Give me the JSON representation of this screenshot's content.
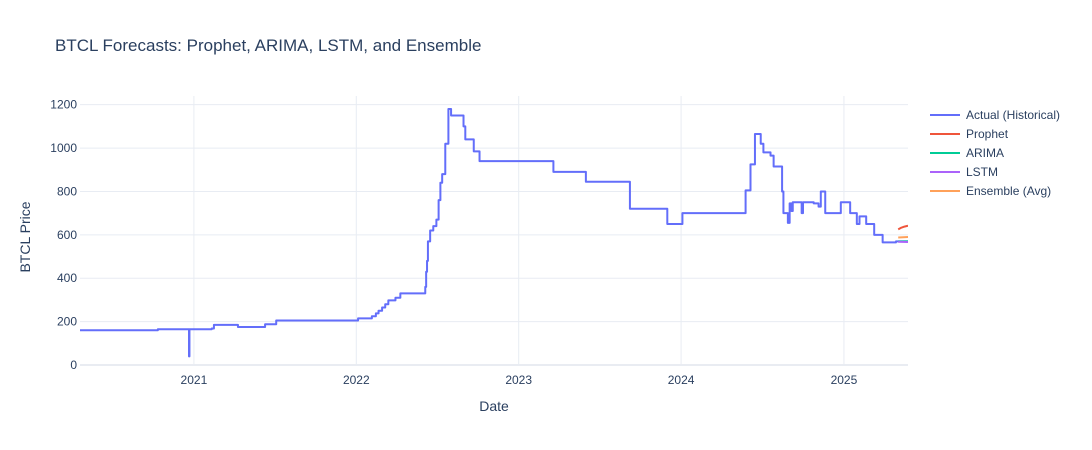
{
  "chart_data": {
    "type": "line",
    "title": "BTCL Forecasts: Prophet, ARIMA, LSTM, and Ensemble",
    "xlabel": "Date",
    "ylabel": "BTCL Price",
    "xlim": [
      "2020-04-20",
      "2025-05-25"
    ],
    "ylim": [
      0,
      1240
    ],
    "x_ticks": [
      "2021",
      "2022",
      "2023",
      "2024",
      "2025"
    ],
    "y_ticks": [
      0,
      200,
      400,
      600,
      800,
      1000,
      1200
    ],
    "grid": true,
    "legend_position": "top-right",
    "series": [
      {
        "name": "Actual (Historical)",
        "color": "#636efa",
        "line_shape": "hv",
        "points": [
          [
            "2020-04-20",
            160
          ],
          [
            "2020-10-12",
            165
          ],
          [
            "2020-12-20",
            165
          ],
          [
            "2020-12-21",
            40
          ],
          [
            "2020-12-22",
            165
          ],
          [
            "2021-02-10",
            168
          ],
          [
            "2021-02-15",
            185
          ],
          [
            "2021-04-10",
            175
          ],
          [
            "2021-06-10",
            188
          ],
          [
            "2021-07-05",
            205
          ],
          [
            "2022-01-05",
            215
          ],
          [
            "2022-02-05",
            225
          ],
          [
            "2022-02-14",
            238
          ],
          [
            "2022-02-20",
            250
          ],
          [
            "2022-02-28",
            265
          ],
          [
            "2022-03-07",
            280
          ],
          [
            "2022-03-14",
            298
          ],
          [
            "2022-03-30",
            310
          ],
          [
            "2022-04-10",
            330
          ],
          [
            "2022-06-05",
            360
          ],
          [
            "2022-06-07",
            430
          ],
          [
            "2022-06-09",
            480
          ],
          [
            "2022-06-11",
            570
          ],
          [
            "2022-06-16",
            620
          ],
          [
            "2022-06-23",
            640
          ],
          [
            "2022-06-30",
            670
          ],
          [
            "2022-07-05",
            760
          ],
          [
            "2022-07-09",
            840
          ],
          [
            "2022-07-13",
            880
          ],
          [
            "2022-07-20",
            1020
          ],
          [
            "2022-07-27",
            1180
          ],
          [
            "2022-08-02",
            1150
          ],
          [
            "2022-08-30",
            1100
          ],
          [
            "2022-09-03",
            1040
          ],
          [
            "2022-09-22",
            985
          ],
          [
            "2022-10-05",
            940
          ],
          [
            "2023-03-20",
            890
          ],
          [
            "2023-06-01",
            845
          ],
          [
            "2023-09-08",
            720
          ],
          [
            "2023-12-01",
            650
          ],
          [
            "2024-01-04",
            700
          ],
          [
            "2024-05-25",
            805
          ],
          [
            "2024-06-05",
            925
          ],
          [
            "2024-06-15",
            1065
          ],
          [
            "2024-06-28",
            1020
          ],
          [
            "2024-07-04",
            980
          ],
          [
            "2024-07-20",
            965
          ],
          [
            "2024-07-27",
            915
          ],
          [
            "2024-08-15",
            800
          ],
          [
            "2024-08-18",
            700
          ],
          [
            "2024-08-28",
            655
          ],
          [
            "2024-09-01",
            745
          ],
          [
            "2024-09-05",
            710
          ],
          [
            "2024-09-08",
            750
          ],
          [
            "2024-09-28",
            700
          ],
          [
            "2024-10-01",
            750
          ],
          [
            "2024-10-25",
            745
          ],
          [
            "2024-11-05",
            730
          ],
          [
            "2024-11-10",
            800
          ],
          [
            "2024-11-20",
            700
          ],
          [
            "2024-12-25",
            750
          ],
          [
            "2025-01-15",
            700
          ],
          [
            "2025-01-30",
            650
          ],
          [
            "2025-02-05",
            685
          ],
          [
            "2025-02-20",
            650
          ],
          [
            "2025-03-10",
            600
          ],
          [
            "2025-03-29",
            565
          ],
          [
            "2025-04-28",
            570
          ],
          [
            "2025-05-25",
            570
          ]
        ]
      },
      {
        "name": "Prophet",
        "color": "#ef553b",
        "line_shape": "spline",
        "points": [
          [
            "2025-05-03",
            625
          ],
          [
            "2025-05-10",
            633
          ],
          [
            "2025-05-17",
            638
          ],
          [
            "2025-05-25",
            642
          ]
        ]
      },
      {
        "name": "ARIMA",
        "color": "#00cc96",
        "line_shape": "linear",
        "points": [
          [
            "2025-05-03",
            570
          ],
          [
            "2025-05-25",
            570
          ]
        ]
      },
      {
        "name": "LSTM",
        "color": "#ab63fa",
        "line_shape": "linear",
        "points": [
          [
            "2025-05-03",
            568
          ],
          [
            "2025-05-25",
            567
          ]
        ]
      },
      {
        "name": "Ensemble (Avg)",
        "color": "#ffa15a",
        "line_shape": "linear",
        "points": [
          [
            "2025-05-03",
            588
          ],
          [
            "2025-05-25",
            590
          ]
        ]
      }
    ]
  }
}
